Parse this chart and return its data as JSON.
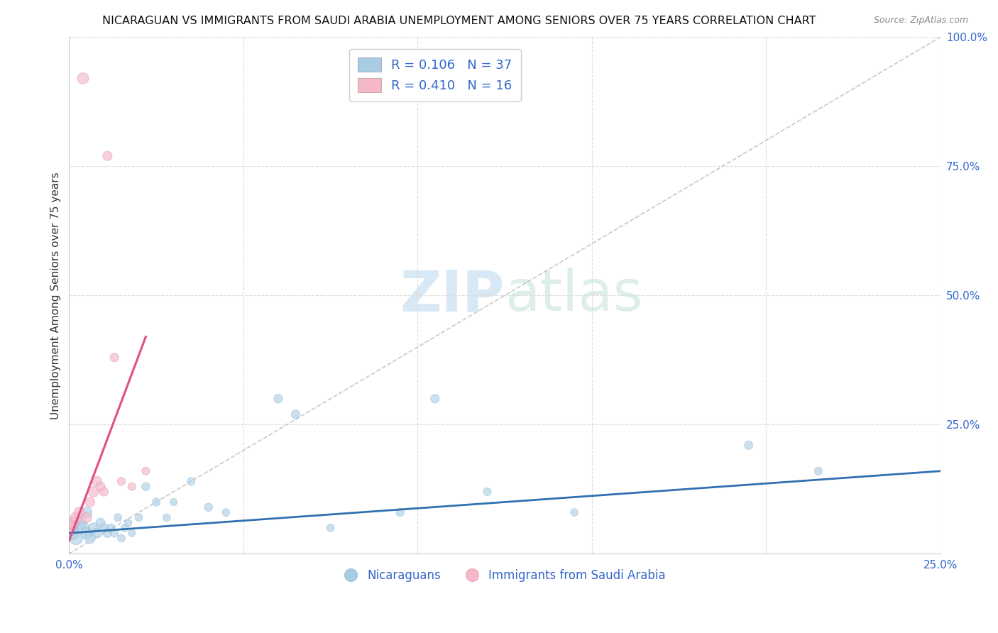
{
  "title": "NICARAGUAN VS IMMIGRANTS FROM SAUDI ARABIA UNEMPLOYMENT AMONG SENIORS OVER 75 YEARS CORRELATION CHART",
  "source": "Source: ZipAtlas.com",
  "ylabel": "Unemployment Among Seniors over 75 years",
  "xlim": [
    0.0,
    0.25
  ],
  "ylim": [
    0.0,
    1.0
  ],
  "blue_R": 0.106,
  "blue_N": 37,
  "pink_R": 0.41,
  "pink_N": 16,
  "blue_color": "#a8cce4",
  "pink_color": "#f4b8c8",
  "blue_line_color": "#3070b0",
  "pink_line_color": "#e05080",
  "diag_line_color": "#cccccc",
  "legend_label_blue": "Nicaraguans",
  "legend_label_pink": "Immigrants from Saudi Arabia",
  "blue_points_x": [
    0.0,
    0.001,
    0.002,
    0.003,
    0.004,
    0.005,
    0.005,
    0.006,
    0.007,
    0.008,
    0.009,
    0.01,
    0.011,
    0.012,
    0.013,
    0.014,
    0.015,
    0.016,
    0.017,
    0.018,
    0.02,
    0.022,
    0.025,
    0.028,
    0.03,
    0.035,
    0.04,
    0.045,
    0.06,
    0.065,
    0.075,
    0.095,
    0.105,
    0.12,
    0.145,
    0.195,
    0.215
  ],
  "blue_points_y": [
    0.05,
    0.04,
    0.03,
    0.06,
    0.05,
    0.04,
    0.08,
    0.03,
    0.05,
    0.04,
    0.06,
    0.05,
    0.04,
    0.05,
    0.04,
    0.07,
    0.03,
    0.05,
    0.06,
    0.04,
    0.07,
    0.13,
    0.1,
    0.07,
    0.1,
    0.14,
    0.09,
    0.08,
    0.3,
    0.27,
    0.05,
    0.08,
    0.3,
    0.12,
    0.08,
    0.21,
    0.16
  ],
  "blue_sizes": [
    300,
    200,
    180,
    160,
    150,
    140,
    130,
    120,
    110,
    100,
    90,
    80,
    80,
    70,
    70,
    65,
    60,
    60,
    55,
    55,
    60,
    70,
    65,
    60,
    55,
    65,
    70,
    60,
    80,
    80,
    60,
    70,
    80,
    65,
    60,
    75,
    65
  ],
  "pink_points_x": [
    0.0,
    0.001,
    0.002,
    0.003,
    0.004,
    0.005,
    0.006,
    0.007,
    0.008,
    0.009,
    0.01,
    0.011,
    0.013,
    0.015,
    0.018,
    0.022
  ],
  "pink_points_y": [
    0.05,
    0.06,
    0.07,
    0.08,
    0.92,
    0.07,
    0.1,
    0.12,
    0.14,
    0.13,
    0.12,
    0.77,
    0.38,
    0.14,
    0.13,
    0.16
  ],
  "pink_sizes": [
    200,
    150,
    130,
    120,
    130,
    110,
    100,
    110,
    100,
    90,
    80,
    90,
    80,
    70,
    65,
    65
  ],
  "blue_trend_x": [
    0.0,
    0.25
  ],
  "blue_trend_y": [
    0.04,
    0.16
  ],
  "pink_trend_x": [
    0.0,
    0.022
  ],
  "pink_trend_y": [
    0.025,
    0.42
  ]
}
